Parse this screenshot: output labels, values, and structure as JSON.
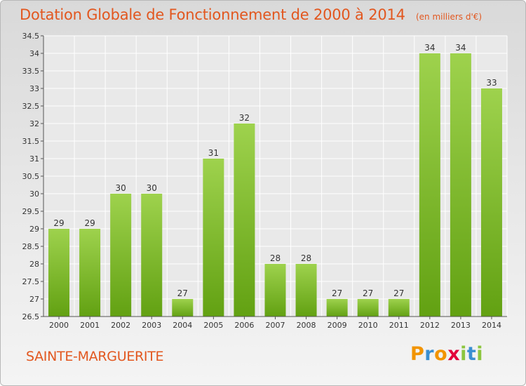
{
  "chart_data": {
    "type": "bar",
    "title": "Dotation Globale de Fonctionnement de 2000 à 2014",
    "subtitle": "(en milliers d'€)",
    "categories": [
      "2000",
      "2001",
      "2002",
      "2003",
      "2004",
      "2005",
      "2006",
      "2007",
      "2008",
      "2009",
      "2010",
      "2011",
      "2012",
      "2013",
      "2014"
    ],
    "values": [
      29,
      29,
      30,
      30,
      27,
      31,
      32,
      28,
      28,
      27,
      27,
      27,
      34,
      34,
      33
    ],
    "ylim": [
      26.5,
      34.5
    ],
    "yticks": [
      26.5,
      27,
      27.5,
      28,
      28.5,
      29,
      29.5,
      30,
      30.5,
      31,
      31.5,
      32,
      32.5,
      33,
      33.5,
      34,
      34.5
    ],
    "grid": true,
    "bar_color": "#8cc63f"
  },
  "footer": {
    "place_name": "SAINTE-MARGUERITE",
    "logo_letters": [
      "P",
      "r",
      "o",
      "x",
      "i",
      "t",
      "i"
    ],
    "logo_colors": [
      "#f29400",
      "#3a8fd1",
      "#f29400",
      "#e2003a",
      "#8cc63f",
      "#3a8fd1",
      "#8cc63f"
    ]
  },
  "colors": {
    "accent": "#e2571f"
  }
}
